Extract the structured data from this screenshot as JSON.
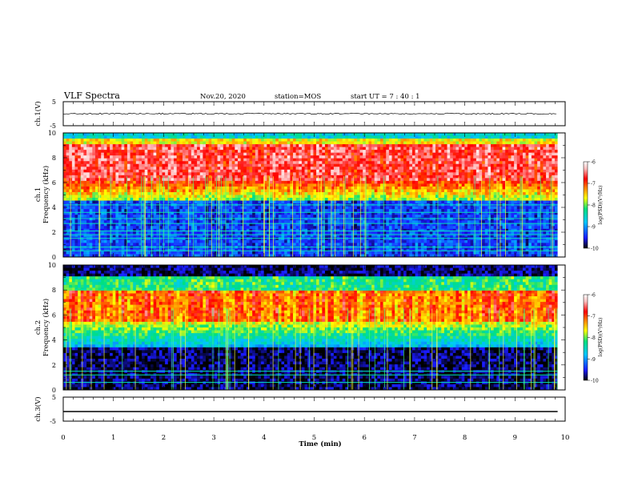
{
  "header": {
    "title": "VLF Spectra",
    "date": "Nov.20, 2020",
    "station": "station=MOS",
    "start": "start  UT =   7 : 40 : 1"
  },
  "chart_data": [
    {
      "type": "line",
      "ylabel": "ch.1(V)",
      "ylim": [
        -5,
        5
      ],
      "yticks": [
        "5",
        "-5"
      ],
      "series": [
        {
          "values": "near-zero noisy waveform across 0–9.85 min"
        }
      ]
    },
    {
      "type": "heatmap",
      "ylabel": "ch.1\nFrequency (kHz)",
      "ylim": [
        0,
        10
      ],
      "yticks": [
        "0",
        "2",
        "4",
        "6",
        "8",
        "10"
      ],
      "xlim": [
        0,
        10
      ],
      "data_end_min": 9.85,
      "bands": {
        "red_core_khz": [
          6.2,
          9.2
        ],
        "noise_lines_khz": [
          0.5,
          0.8,
          1.5,
          1.8,
          2.1,
          2.7,
          3.1,
          3.6,
          4.2
        ]
      },
      "colorbar": {
        "label": "log(PSD)(V²/Hz)",
        "ticks": [
          "-6",
          "-7",
          "-8",
          "-9",
          "-10"
        ],
        "range": [
          -10,
          -6
        ]
      }
    },
    {
      "type": "heatmap",
      "ylabel": "ch.2\nFrequency (kHz)",
      "ylim": [
        0,
        10
      ],
      "yticks": [
        "0",
        "2",
        "4",
        "6",
        "8",
        "10"
      ],
      "xlim": [
        0,
        10
      ],
      "data_end_min": 9.85,
      "bands": {
        "red_core_khz": [
          5.5,
          8.0
        ],
        "noise_lines_khz": [
          0.6,
          1.2,
          1.5
        ]
      },
      "colorbar": {
        "label": "log(PSD)(V²/Hz)",
        "ticks": [
          "-6",
          "-7",
          "-8",
          "-9",
          "-10"
        ],
        "range": [
          -10,
          -6
        ]
      }
    },
    {
      "type": "line",
      "ylabel": "ch.3(V)",
      "ylim": [
        -5,
        5
      ],
      "yticks": [
        "5",
        "-5"
      ],
      "series": [
        {
          "values": "constant ≈ -1 V from 0 to 9.85 min"
        }
      ]
    }
  ],
  "xaxis": {
    "label": "Time (min)",
    "ticks": [
      "0",
      "1",
      "2",
      "3",
      "4",
      "5",
      "6",
      "7",
      "8",
      "9",
      "10"
    ]
  },
  "colors": {
    "colormap": [
      "#000000",
      "#1a1aff",
      "#00c8ff",
      "#00e080",
      "#ffff00",
      "#ff8000",
      "#ff0000",
      "#ffc0c0",
      "#ffffff"
    ]
  }
}
